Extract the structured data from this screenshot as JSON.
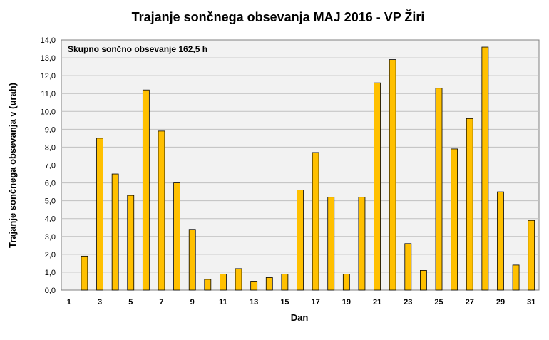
{
  "chart_data": {
    "type": "bar",
    "title": "Trajanje  sončnega obsevanja  MAJ 2016 - VP Žiri",
    "xlabel": "Dan",
    "ylabel": "Trajanje  sončnega obsevanja  v (urah)",
    "annotation": "Skupno sončno obsevanje 162,5 h",
    "ylim": [
      0,
      14
    ],
    "ystep": 1,
    "grid": "horizontal",
    "legend": "none",
    "categories": [
      "1",
      "2",
      "3",
      "4",
      "5",
      "6",
      "7",
      "8",
      "9",
      "10",
      "11",
      "12",
      "13",
      "14",
      "15",
      "16",
      "17",
      "18",
      "19",
      "20",
      "21",
      "22",
      "23",
      "24",
      "25",
      "26",
      "27",
      "28",
      "29",
      "30",
      "31"
    ],
    "x_tick_labels_shown": [
      "1",
      "3",
      "5",
      "7",
      "9",
      "11",
      "13",
      "15",
      "17",
      "19",
      "21",
      "23",
      "25",
      "27",
      "29",
      "31"
    ],
    "values": [
      0,
      1.9,
      8.5,
      6.5,
      5.3,
      11.2,
      8.9,
      6.0,
      3.4,
      0.6,
      0.9,
      1.2,
      0.5,
      0.7,
      0.9,
      5.6,
      7.7,
      5.2,
      0.9,
      5.2,
      11.6,
      12.9,
      2.6,
      1.1,
      11.3,
      7.9,
      9.6,
      13.6,
      5.5,
      1.4,
      3.9
    ],
    "colors": {
      "bar_fill": "#FFC000",
      "bar_stroke": "#000000",
      "plot_background": "#F2F2F2",
      "grid": "#BFBFBF"
    }
  }
}
